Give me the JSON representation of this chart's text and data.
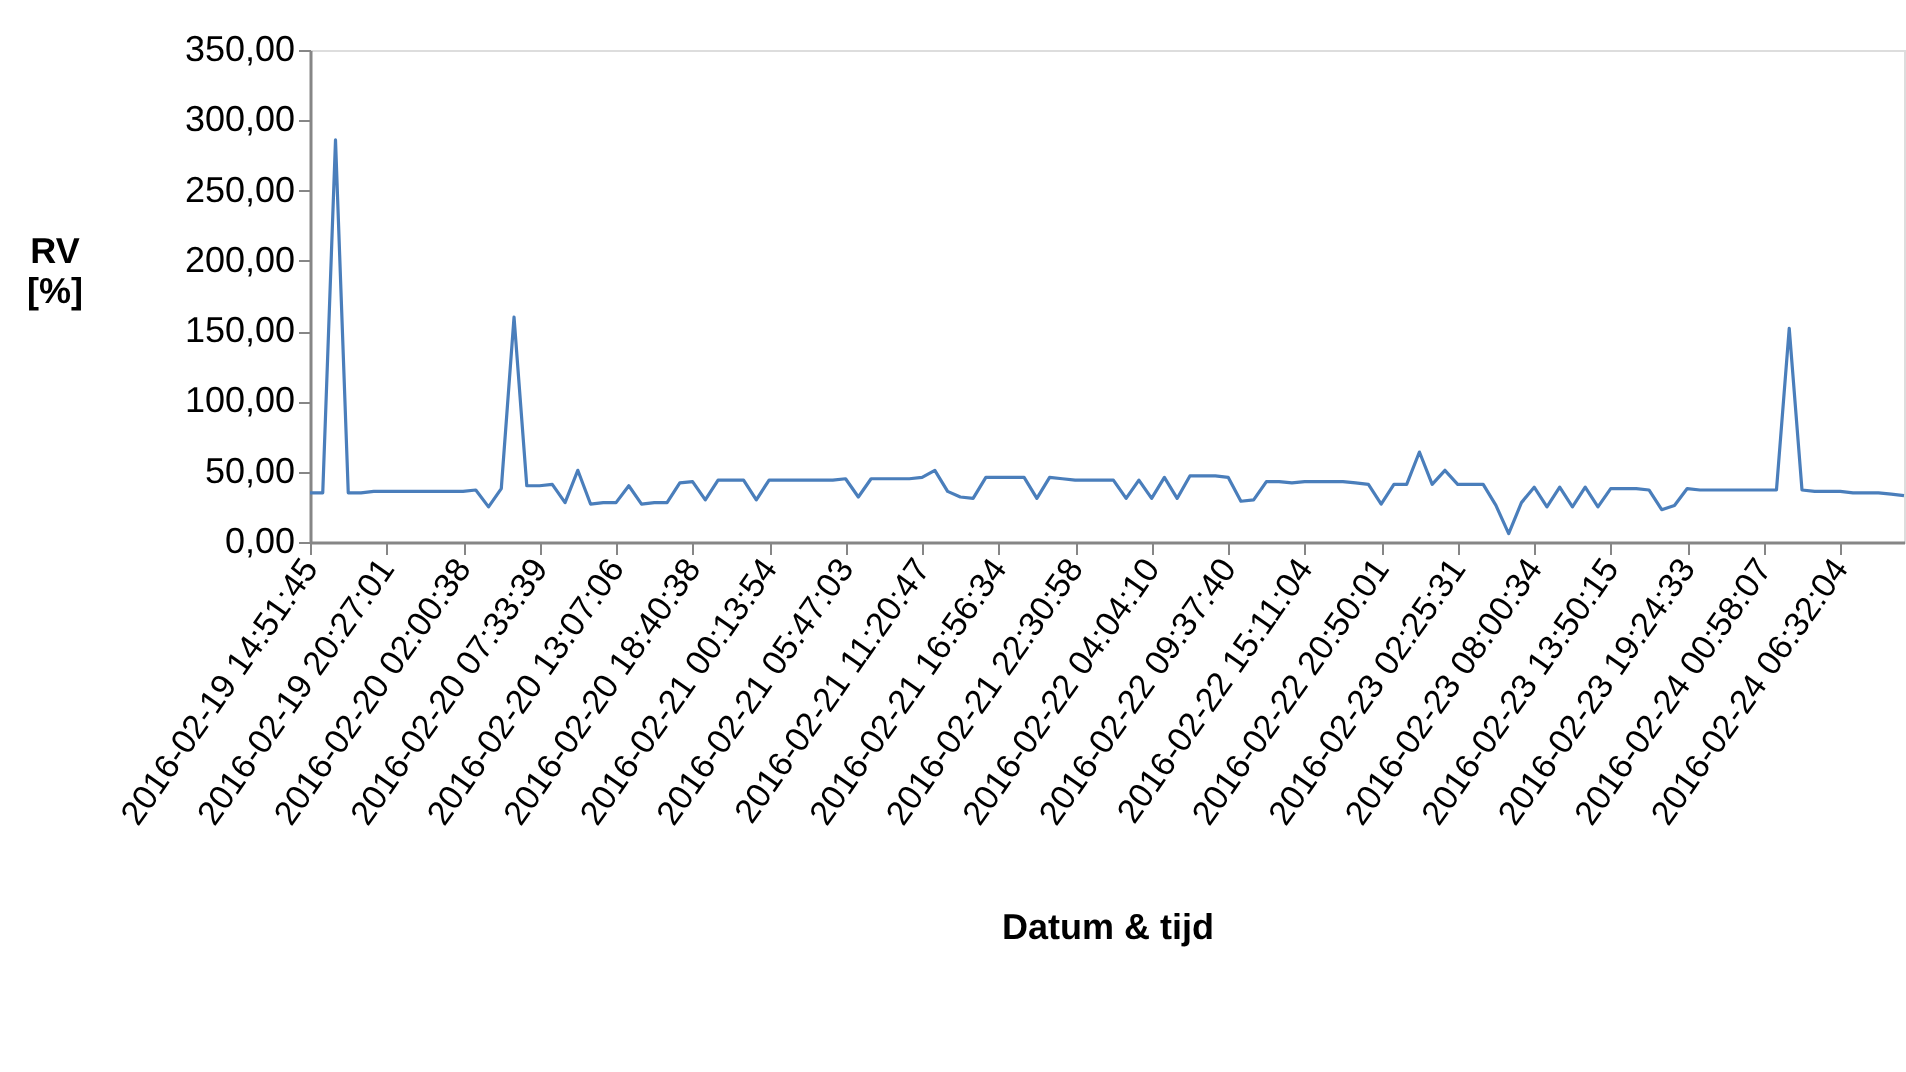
{
  "chart_data": {
    "type": "line",
    "xlabel": "Datum & tijd",
    "ylabel": "RV [%]",
    "categories": [
      "2016-02-19 14:51:45",
      null,
      null,
      null,
      null,
      null,
      "2016-02-19 20:27:01",
      null,
      null,
      null,
      null,
      null,
      "2016-02-20 02:00:38",
      null,
      null,
      null,
      null,
      null,
      "2016-02-20 07:33:39",
      null,
      null,
      null,
      null,
      null,
      "2016-02-20 13:07:06",
      null,
      null,
      null,
      null,
      null,
      "2016-02-20 18:40:38",
      null,
      null,
      null,
      null,
      null,
      "2016-02-21 00:13:54",
      null,
      null,
      null,
      null,
      null,
      "2016-02-21 05:47:03",
      null,
      null,
      null,
      null,
      null,
      "2016-02-21 11:20:47",
      null,
      null,
      null,
      null,
      null,
      "2016-02-21 16:56:34",
      null,
      null,
      null,
      null,
      null,
      "2016-02-21 22:30:58",
      null,
      null,
      null,
      null,
      null,
      "2016-02-22 04:04:10",
      null,
      null,
      null,
      null,
      null,
      "2016-02-22 09:37:40",
      null,
      null,
      null,
      null,
      null,
      "2016-02-22 15:11:04",
      null,
      null,
      null,
      null,
      null,
      "2016-02-22 20:50:01",
      null,
      null,
      null,
      null,
      null,
      "2016-02-23 02:25:31",
      null,
      null,
      null,
      null,
      null,
      "2016-02-23 08:00:34",
      null,
      null,
      null,
      null,
      null,
      "2016-02-23 13:50:15",
      null,
      null,
      null,
      null,
      null,
      "2016-02-23 19:24:33",
      null,
      null,
      null,
      null,
      null,
      "2016-02-24 00:58:07",
      null,
      null,
      null,
      null,
      null,
      "2016-02-24 06:32:04",
      null,
      null,
      null,
      null,
      null
    ],
    "series": [
      {
        "color": "#4a7ebb",
        "values": [
          35,
          35,
          286,
          35,
          35,
          36,
          36,
          36,
          36,
          36,
          36,
          36,
          36,
          37,
          25,
          38,
          160,
          40,
          40,
          41,
          28,
          51,
          27,
          28,
          28,
          40,
          27,
          28,
          28,
          42,
          43,
          30,
          44,
          44,
          44,
          30,
          44,
          44,
          44,
          44,
          44,
          44,
          45,
          32,
          45,
          45,
          45,
          45,
          46,
          51,
          36,
          32,
          31,
          46,
          46,
          46,
          46,
          31,
          46,
          45,
          44,
          44,
          44,
          44,
          31,
          44,
          31,
          46,
          31,
          47,
          47,
          47,
          46,
          29,
          30,
          43,
          43,
          42,
          43,
          43,
          43,
          43,
          42,
          41,
          27,
          41,
          41,
          64,
          41,
          51,
          41,
          41,
          41,
          26,
          6,
          28,
          39,
          25,
          39,
          25,
          39,
          25,
          38,
          38,
          38,
          37,
          23,
          26,
          38,
          37,
          37,
          37,
          37,
          37,
          37,
          37,
          152,
          37,
          36,
          36,
          36,
          35,
          35,
          35,
          34,
          33
        ]
      }
    ],
    "ylim": [
      0,
      350
    ],
    "yticks": [
      {
        "value": 0,
        "label": "0,00"
      },
      {
        "value": 50,
        "label": "50,00"
      },
      {
        "value": 100,
        "label": "100,00"
      },
      {
        "value": 150,
        "label": "150,00"
      },
      {
        "value": 200,
        "label": "200,00"
      },
      {
        "value": 250,
        "label": "250,00"
      },
      {
        "value": 300,
        "label": "300,00"
      },
      {
        "value": 350,
        "label": "350,00"
      }
    ],
    "grid": false,
    "marker": "none",
    "line_style": "solid"
  }
}
